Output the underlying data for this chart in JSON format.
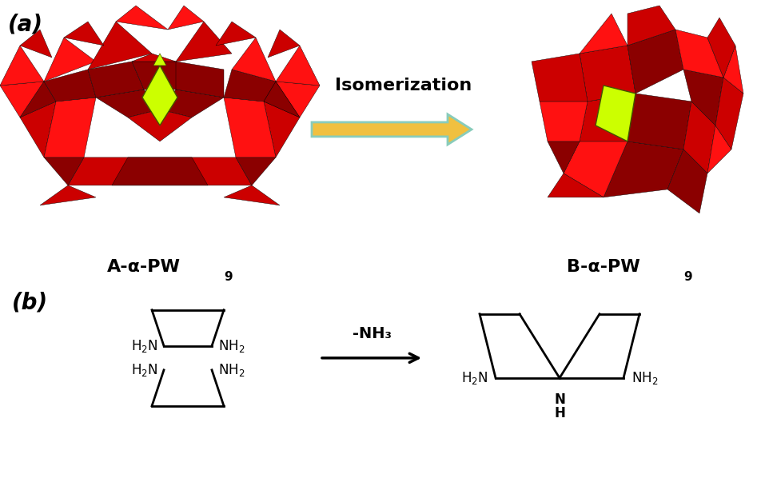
{
  "bg_color": "#ffffff",
  "label_a": "(a)",
  "label_b": "(b)",
  "label_fontsize": 20,
  "label_fontweight": "bold",
  "struct_label_left": "A-α-PW",
  "struct_label_left_sub": "9",
  "struct_label_right": "B-α-PW",
  "struct_label_right_sub": "9",
  "struct_label_fontsize": 16,
  "struct_label_fontweight": "bold",
  "arrow_text": "Isomerization",
  "arrow_text_fontsize": 16,
  "arrow_text_fontweight": "bold",
  "reaction_text": "-NH₃",
  "reaction_text_fontsize": 14,
  "reaction_text_fontweight": "bold",
  "red_dark": "#8B0000",
  "red_main": "#CC0000",
  "red_bright": "#FF1111",
  "yellow_green": "#CCFF00",
  "arrow_fill": "#F0C040",
  "arrow_edge": "#88CCBB",
  "line_color": "#000000",
  "line_width": 2.0,
  "poly_lw": 0.3
}
